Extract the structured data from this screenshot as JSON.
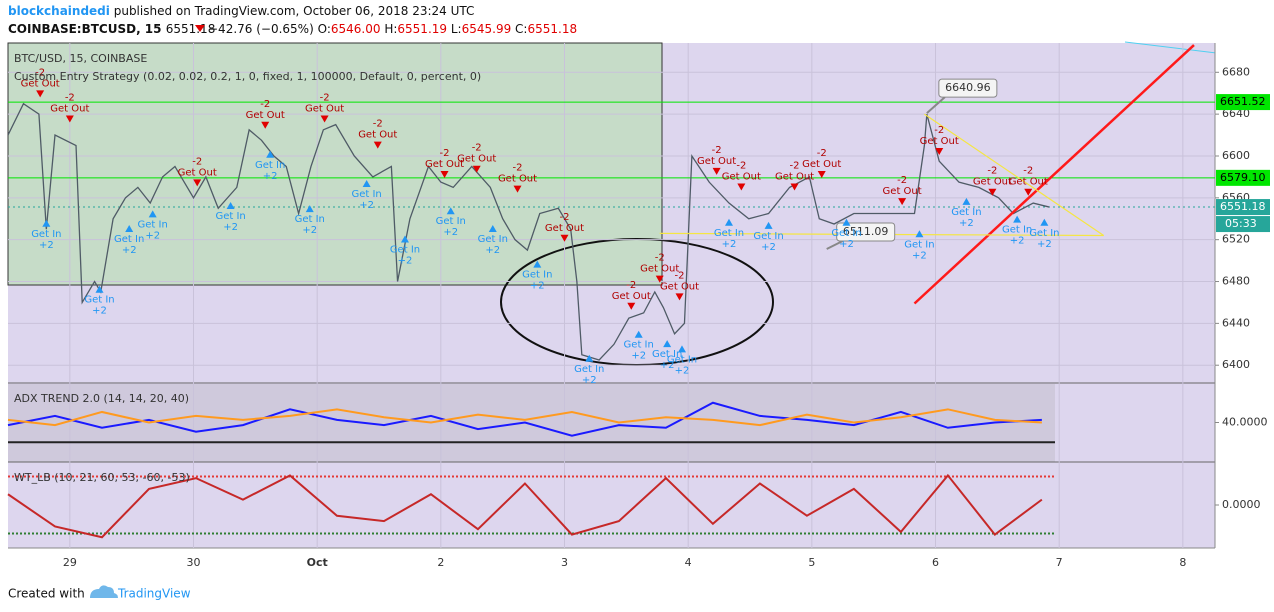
{
  "header": {
    "author": "blockchaindedi",
    "published": "published on TradingView.com, October 06, 2018 23:24 UTC",
    "symbol": "COINBASE:BTCUSD, 15",
    "price": "6551.18",
    "change": "−42.76 (−0.65%)",
    "ohlc": [
      [
        "O:",
        "6546.00"
      ],
      [
        "H:",
        "6551.19"
      ],
      [
        "L:",
        "6545.99"
      ],
      [
        "C:",
        "6551.18"
      ]
    ]
  },
  "footer": {
    "created": "Created with",
    "brand": "TradingView"
  },
  "chart_data": [
    {
      "type": "line",
      "title": "BTC/USD, 15, COINBASE",
      "subtitle": "Custom Entry Strategy (0.02, 0.02, 0.2, 1, 0, fixed, 1, 100000, Default, 0, percent, 0)",
      "x": [
        -0.5,
        -0.375,
        -0.25,
        -0.19,
        -0.12,
        0.05,
        0.1,
        0.2,
        0.25,
        0.35,
        0.45,
        0.55,
        0.65,
        0.75,
        0.85,
        1.0,
        1.1,
        1.2,
        1.35,
        1.45,
        1.55,
        1.65,
        1.75,
        1.85,
        1.95,
        2.05,
        2.15,
        2.3,
        2.45,
        2.6,
        2.65,
        2.75,
        2.9,
        3.0,
        3.1,
        3.25,
        3.4,
        3.5,
        3.6,
        3.7,
        3.8,
        3.95,
        4.05,
        4.1,
        4.14,
        4.28,
        4.4,
        4.52,
        4.64,
        4.73,
        4.8,
        4.89,
        4.97,
        5.03,
        5.17,
        5.33,
        5.49,
        5.65,
        5.82,
        5.98,
        6.06,
        6.18,
        6.34,
        6.5,
        6.66,
        6.83,
        6.91,
        6.93,
        7.03,
        7.19,
        7.35,
        7.51,
        7.63,
        7.79,
        7.92
      ],
      "series": [
        {
          "color": "#4f5b66",
          "values": [
            6620,
            6650,
            6640,
            6530,
            6620,
            6610,
            6460,
            6480,
            6470,
            6540,
            6560,
            6570,
            6555,
            6580,
            6590,
            6560,
            6580,
            6550,
            6570,
            6625,
            6615,
            6600,
            6590,
            6545,
            6590,
            6625,
            6630,
            6600,
            6580,
            6590,
            6480,
            6540,
            6590,
            6575,
            6570,
            6590,
            6570,
            6540,
            6520,
            6510,
            6545,
            6550,
            6530,
            6480,
            6410,
            6405,
            6420,
            6445,
            6450,
            6470,
            6455,
            6430,
            6440,
            6600,
            6575,
            6555,
            6540,
            6545,
            6570,
            6580,
            6540,
            6535,
            6545,
            6545,
            6545,
            6545,
            6610,
            6640,
            6595,
            6575,
            6570,
            6560,
            6545,
            6555,
            6551.18
          ]
        }
      ],
      "xlim": [
        -0.5,
        9.26
      ],
      "xticks": [
        {
          "value": 0,
          "label": "29"
        },
        {
          "value": 1,
          "label": "30"
        },
        {
          "value": 2,
          "label": "Oct"
        },
        {
          "value": 3,
          "label": "2"
        },
        {
          "value": 4,
          "label": "3"
        },
        {
          "value": 5,
          "label": "4"
        },
        {
          "value": 6,
          "label": "5"
        },
        {
          "value": 7,
          "label": "6"
        },
        {
          "value": 8,
          "label": "7"
        },
        {
          "value": 9,
          "label": "8"
        }
      ],
      "ylim": [
        6383,
        6708
      ],
      "yticks": [
        6400,
        6440,
        6480,
        6520,
        6560,
        6600,
        6640,
        6680
      ],
      "grid": true,
      "price_lines": [
        {
          "value": 6651.52,
          "label": "6651.52",
          "color": "#00e600"
        },
        {
          "value": 6579.1,
          "label": "6579.10",
          "color": "#00e600"
        },
        {
          "value": 6551.18,
          "label": "6551.18",
          "color": "#26a69a"
        }
      ],
      "countdown": "05:33",
      "annotations": [
        {
          "x": 6.93,
          "y": 6640.96
        },
        {
          "x": 6.12,
          "y": 6511.09
        }
      ],
      "trendlines": [
        {
          "x": [
            6.83,
            9.09
          ],
          "y": [
            6459,
            6706
          ],
          "color": "#ff1a1a"
        },
        {
          "x": [
            6.91,
            8.36
          ],
          "y": [
            6640,
            6524
          ],
          "color": "#f5e642"
        },
        {
          "x": [
            4.77,
            8.36
          ],
          "y": [
            6526,
            6524
          ],
          "color": "#f5e642"
        }
      ],
      "signals": {
        "exits": {
          "text": "Get Out",
          "qty": "-2",
          "color": "#e00000",
          "x": [
            -0.24,
            0,
            1.03,
            1.58,
            2.06,
            2.49,
            3.03,
            3.29,
            3.62,
            4.0,
            4.54,
            4.77,
            4.93,
            5.23,
            5.43,
            5.86,
            6.08,
            6.73,
            7.03,
            7.46,
            7.75
          ],
          "y": [
            6656,
            6632,
            6571,
            6626,
            6632,
            6607,
            6579,
            6584,
            6565,
            6518,
            6453,
            6479,
            6462,
            6582,
            6567,
            6567,
            6579,
            6553,
            6601,
            6562,
            6562
          ]
        },
        "entries": {
          "text": "Get In",
          "qty": "+2",
          "color": "#2196f3",
          "x": [
            -0.19,
            0.24,
            0.48,
            0.67,
            1.3,
            1.62,
            1.94,
            2.4,
            2.71,
            3.08,
            3.42,
            3.78,
            4.2,
            4.6,
            4.83,
            4.95,
            5.33,
            5.65,
            6.28,
            6.87,
            7.25,
            7.66,
            7.88
          ],
          "y": [
            6539,
            6476,
            6534,
            6548,
            6556,
            6605,
            6553,
            6577,
            6524,
            6551,
            6534,
            6500,
            6410,
            6433,
            6424,
            6419,
            6540,
            6537,
            6540,
            6529,
            6560,
            6543,
            6540
          ]
        }
      }
    },
    {
      "type": "line",
      "title": "ADX TREND 2.0 (14, 14, 20, 40)",
      "x": [
        -0.5,
        -0.12,
        0.26,
        0.64,
        1.02,
        1.4,
        1.78,
        2.16,
        2.54,
        2.92,
        3.3,
        3.68,
        4.06,
        4.44,
        4.82,
        5.2,
        5.58,
        5.96,
        6.34,
        6.72,
        7.1,
        7.48,
        7.86
      ],
      "series": [
        {
          "color": "#1a1aff",
          "values": [
            38,
            45,
            36,
            42,
            33,
            38,
            50,
            42,
            38,
            45,
            35,
            40,
            30,
            38,
            36,
            55,
            45,
            42,
            38,
            48,
            36,
            40,
            42
          ]
        },
        {
          "color": "#ff9a1f",
          "values": [
            42,
            38,
            48,
            40,
            45,
            42,
            45,
            50,
            44,
            40,
            46,
            42,
            48,
            40,
            44,
            42,
            38,
            46,
            40,
            44,
            50,
            42,
            40
          ]
        }
      ],
      "ylim": [
        10,
        70
      ],
      "yticks": [
        {
          "value": 40,
          "label": "40.0000"
        }
      ],
      "levels": [
        {
          "value": 25,
          "color": "#222222"
        }
      ]
    },
    {
      "type": "line",
      "title": "WT_LB (10, 21, 60, 53, -60, -53)",
      "x": [
        -0.5,
        -0.12,
        0.26,
        0.64,
        1.02,
        1.4,
        1.78,
        2.16,
        2.54,
        2.92,
        3.3,
        3.68,
        4.06,
        4.44,
        4.82,
        5.2,
        5.58,
        5.96,
        6.34,
        6.72,
        7.1,
        7.48,
        7.86
      ],
      "series": [
        {
          "color": "#c62828",
          "values": [
            20,
            -40,
            -60,
            30,
            50,
            10,
            55,
            -20,
            -30,
            20,
            -45,
            40,
            -55,
            -30,
            50,
            -35,
            40,
            -20,
            30,
            -50,
            55,
            -55,
            10
          ]
        }
      ],
      "ylim": [
        -80,
        80
      ],
      "yticks": [
        {
          "value": 0,
          "label": "0.0000"
        }
      ],
      "levels": [
        {
          "value": 53,
          "color": "#e53935"
        },
        {
          "value": -53,
          "color": "#2e7d32"
        }
      ]
    }
  ]
}
